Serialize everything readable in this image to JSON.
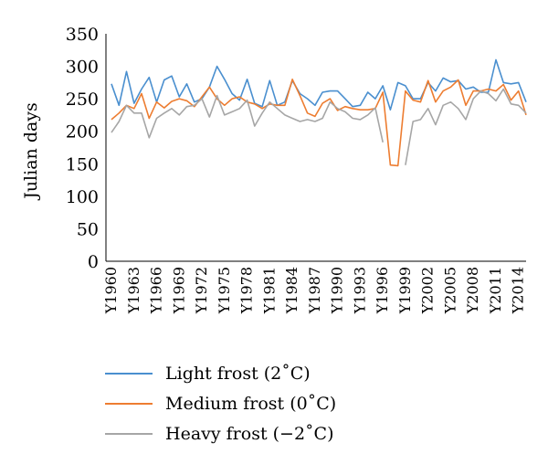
{
  "chart_data": {
    "type": "line",
    "title": "",
    "xlabel": "",
    "ylabel": "Julian days",
    "ylim": [
      0,
      350
    ],
    "yticks": [
      0,
      50,
      100,
      150,
      200,
      250,
      300,
      350
    ],
    "grid": false,
    "legend_position": "bottom",
    "x": [
      "Y1960",
      "Y1961",
      "Y1962",
      "Y1963",
      "Y1964",
      "Y1965",
      "Y1966",
      "Y1967",
      "Y1968",
      "Y1969",
      "Y1970",
      "Y1971",
      "Y1972",
      "Y1973",
      "Y1974",
      "Y1975",
      "Y1976",
      "Y1977",
      "Y1978",
      "Y1979",
      "Y1980",
      "Y1981",
      "Y1982",
      "Y1983",
      "Y1984",
      "Y1985",
      "Y1986",
      "Y1987",
      "Y1988",
      "Y1989",
      "Y1990",
      "Y1991",
      "Y1992",
      "Y1993",
      "Y1994",
      "Y1995",
      "Y1996",
      "Y1997",
      "Y1998",
      "Y1999",
      "Y2000",
      "Y2001",
      "Y2002",
      "Y2003",
      "Y2004",
      "Y2005",
      "Y2006",
      "Y2007",
      "Y2008",
      "Y2009",
      "Y2010",
      "Y2011",
      "Y2012",
      "Y2013",
      "Y2014",
      "Y2015"
    ],
    "x_tick_labels": [
      "Y1960",
      "Y1963",
      "Y1966",
      "Y1969",
      "Y1972",
      "Y1975",
      "Y1978",
      "Y1981",
      "Y1984",
      "Y1987",
      "Y1990",
      "Y1993",
      "Y1996",
      "Y1999",
      "Y2002",
      "Y2005",
      "Y2008",
      "Y2011",
      "Y2014"
    ],
    "series": [
      {
        "name": "Light frost (2˚C)",
        "color": "#4a8fcf",
        "values": [
          273,
          240,
          292,
          243,
          265,
          283,
          245,
          279,
          285,
          253,
          273,
          245,
          250,
          268,
          300,
          280,
          258,
          248,
          280,
          243,
          238,
          278,
          240,
          245,
          278,
          258,
          250,
          240,
          260,
          262,
          262,
          250,
          238,
          240,
          260,
          250,
          270,
          233,
          275,
          270,
          250,
          250,
          275,
          262,
          282,
          276,
          278,
          265,
          268,
          260,
          260,
          310,
          275,
          273,
          275,
          245
        ]
      },
      {
        "name": "Medium frost (0˚C)",
        "color": "#ed7d31",
        "values": [
          218,
          228,
          240,
          235,
          258,
          220,
          245,
          236,
          246,
          250,
          247,
          238,
          253,
          268,
          250,
          240,
          250,
          253,
          245,
          242,
          235,
          242,
          240,
          240,
          280,
          255,
          228,
          223,
          243,
          250,
          232,
          238,
          235,
          233,
          233,
          235,
          260,
          148,
          147,
          262,
          248,
          245,
          278,
          245,
          262,
          268,
          279,
          240,
          262,
          262,
          265,
          262,
          272,
          248,
          262,
          225
        ]
      },
      {
        "name": "Heavy frost (−2˚C)",
        "color": "#a6a6a6",
        "values": [
          198,
          215,
          240,
          228,
          228,
          190,
          220,
          228,
          235,
          225,
          238,
          240,
          250,
          222,
          255,
          225,
          230,
          235,
          248,
          208,
          228,
          245,
          235,
          225,
          220,
          215,
          218,
          215,
          220,
          245,
          235,
          230,
          220,
          218,
          225,
          236,
          183,
          null,
          null,
          148,
          215,
          218,
          235,
          210,
          240,
          245,
          235,
          218,
          250,
          262,
          258,
          247,
          265,
          242,
          240,
          228
        ]
      }
    ]
  }
}
